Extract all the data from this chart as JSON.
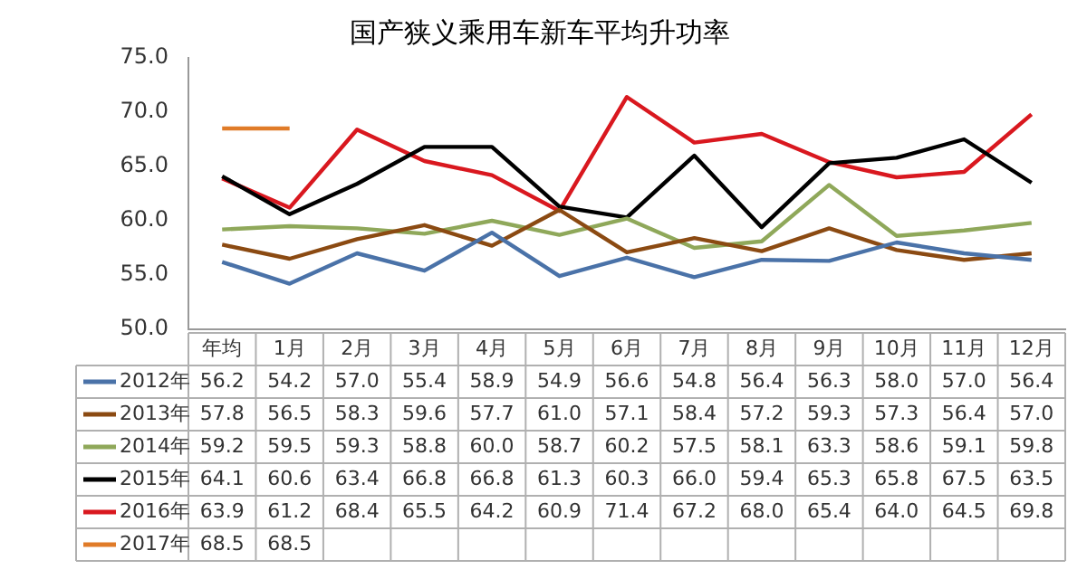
{
  "chart_data": {
    "type": "line",
    "title": "国产狭义乘用车新车平均升功率",
    "categories": [
      "年均",
      "1月",
      "2月",
      "3月",
      "4月",
      "5月",
      "6月",
      "7月",
      "8月",
      "9月",
      "10月",
      "11月",
      "12月"
    ],
    "series": [
      {
        "name": "2012年",
        "color": "#4a72a8",
        "values": [
          56.2,
          54.2,
          57.0,
          55.4,
          58.9,
          54.9,
          56.6,
          54.8,
          56.4,
          56.3,
          58.0,
          57.0,
          56.4
        ],
        "value_labels": [
          "56.2",
          "54.2",
          "57.0",
          "55.4",
          "58.9",
          "54.9",
          "56.6",
          "54.8",
          "56.4",
          "56.3",
          "58.0",
          "57.0",
          "56.4"
        ]
      },
      {
        "name": "2013年",
        "color": "#8b4a12",
        "values": [
          57.8,
          56.5,
          58.3,
          59.6,
          57.7,
          61.0,
          57.1,
          58.4,
          57.2,
          59.3,
          57.3,
          56.4,
          57.0
        ],
        "value_labels": [
          "57.8",
          "56.5",
          "58.3",
          "59.6",
          "57.7",
          "61.0",
          "57.1",
          "58.4",
          "57.2",
          "59.3",
          "57.3",
          "56.4",
          "57.0"
        ]
      },
      {
        "name": "2014年",
        "color": "#8fa85a",
        "values": [
          59.2,
          59.5,
          59.3,
          58.8,
          60.0,
          58.7,
          60.2,
          57.5,
          58.1,
          63.3,
          58.6,
          59.1,
          59.8
        ],
        "value_labels": [
          "59.2",
          "59.5",
          "59.3",
          "58.8",
          "60.0",
          "58.7",
          "60.2",
          "57.5",
          "58.1",
          "63.3",
          "58.6",
          "59.1",
          "59.8"
        ]
      },
      {
        "name": "2015年",
        "color": "#000000",
        "values": [
          64.1,
          60.6,
          63.4,
          66.8,
          66.8,
          61.3,
          60.3,
          66.0,
          59.4,
          65.3,
          65.8,
          67.5,
          63.5
        ],
        "value_labels": [
          "64.1",
          "60.6",
          "63.4",
          "66.8",
          "66.8",
          "61.3",
          "60.3",
          "66.0",
          "59.4",
          "65.3",
          "65.8",
          "67.5",
          "63.5"
        ]
      },
      {
        "name": "2016年",
        "color": "#d9181f",
        "values": [
          63.9,
          61.2,
          68.4,
          65.5,
          64.2,
          60.9,
          71.4,
          67.2,
          68.0,
          65.4,
          64.0,
          64.5,
          69.8
        ],
        "value_labels": [
          "63.9",
          "61.2",
          "68.4",
          "65.5",
          "64.2",
          "60.9",
          "71.4",
          "67.2",
          "68.0",
          "65.4",
          "64.0",
          "64.5",
          "69.8"
        ]
      },
      {
        "name": "2017年",
        "color": "#e07b28",
        "values": [
          68.5,
          68.5,
          null,
          null,
          null,
          null,
          null,
          null,
          null,
          null,
          null,
          null,
          null
        ],
        "value_labels": [
          "68.5",
          "68.5",
          null,
          null,
          null,
          null,
          null,
          null,
          null,
          null,
          null,
          null,
          null
        ]
      }
    ],
    "ylim": [
      50,
      75
    ],
    "yticks": [
      {
        "value": 50,
        "label": "50.0"
      },
      {
        "value": 55,
        "label": "55.0"
      },
      {
        "value": 60,
        "label": "60.0"
      },
      {
        "value": 65,
        "label": "65.0"
      },
      {
        "value": 70,
        "label": "70.0"
      },
      {
        "value": 75,
        "label": "75.0"
      }
    ],
    "tick_labels": "y",
    "grid": false,
    "legend": "bottom",
    "marker": "none",
    "line_style": "solid"
  }
}
